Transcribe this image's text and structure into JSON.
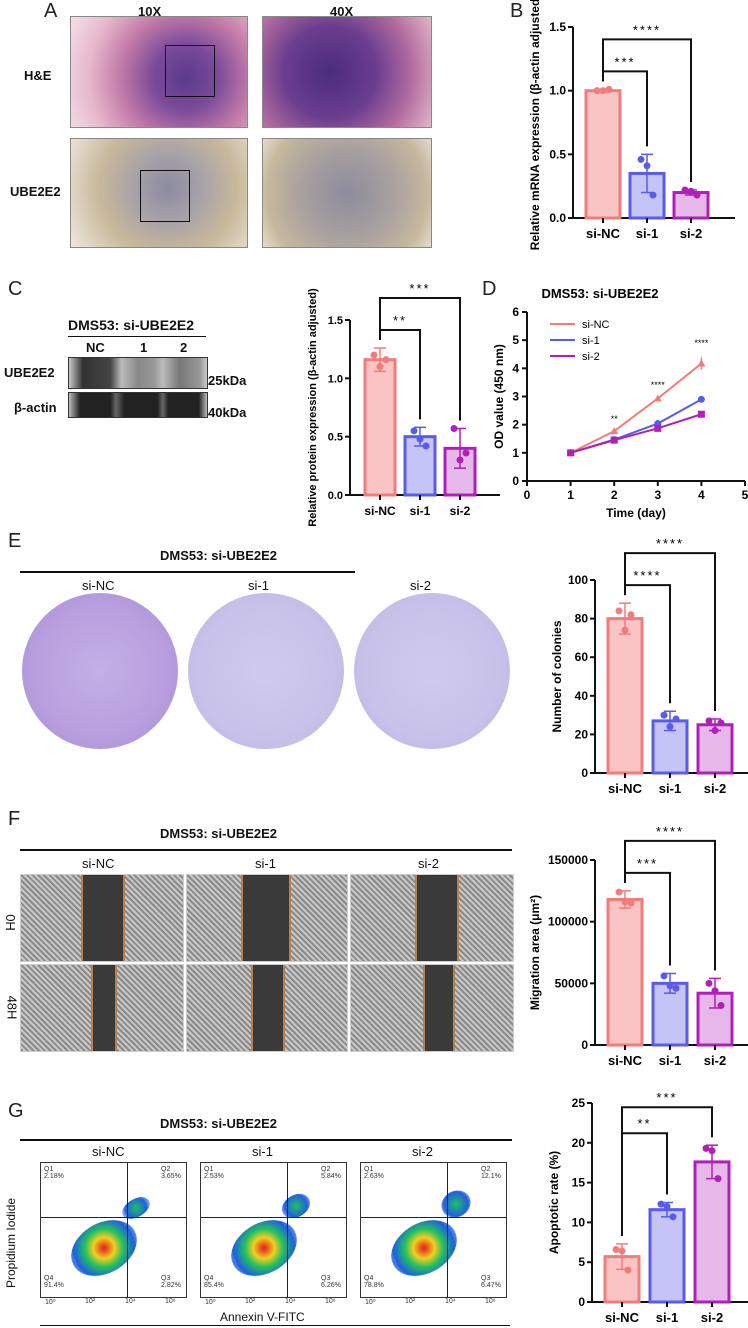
{
  "panel_labels": [
    "A",
    "B",
    "C",
    "D",
    "E",
    "F",
    "G"
  ],
  "panel_a": {
    "col_labels": [
      "10X",
      "40X"
    ],
    "row_labels": [
      "H&E",
      "UBE2E2"
    ]
  },
  "panel_c": {
    "blot_title": "DMS53: si-UBE2E2",
    "lanes": [
      "NC",
      "1",
      "2"
    ],
    "rows": [
      {
        "label": "UBE2E2",
        "size": "25kDa"
      },
      {
        "label": "β-actin",
        "size": "40kDa"
      }
    ]
  },
  "panel_e": {
    "title": "DMS53: si-UBE2E2",
    "plates": [
      "si-NC",
      "si-1",
      "si-2"
    ]
  },
  "panel_f": {
    "title": "DMS53: si-UBE2E2",
    "columns": [
      "si-NC",
      "si-1",
      "si-2"
    ],
    "rows": [
      "0H",
      "48H"
    ]
  },
  "panel_g": {
    "title": "DMS53: si-UBE2E2",
    "columns": [
      "si-NC",
      "si-1",
      "si-2"
    ],
    "ylabel": "Propidium Iodide",
    "xlabel": "Annexin V-FITC",
    "ticks": [
      "10⁰",
      "10²",
      "10⁴",
      "10⁶"
    ],
    "quadrant_names": [
      "Q1",
      "Q2",
      "Q3",
      "Q4"
    ],
    "quadrants": [
      [
        "2.18%",
        "3.65%",
        "2.82%",
        "91.4%"
      ],
      [
        "2.53%",
        "5.84%",
        "6.26%",
        "85.4%"
      ],
      [
        "2.63%",
        "12.1%",
        "6.47%",
        "78.8%"
      ]
    ]
  },
  "colors": {
    "si-NC": "#f07c7c",
    "si-1": "#5b5bea",
    "si-2": "#b020b8"
  },
  "chart_data": [
    {
      "id": "B",
      "type": "bar",
      "categories": [
        "si-NC",
        "si-1",
        "si-2"
      ],
      "values": [
        1.0,
        0.35,
        0.2
      ],
      "errors": [
        0.01,
        0.15,
        0.02
      ],
      "points": [
        [
          1.0,
          1.0,
          1.01
        ],
        [
          0.46,
          0.41,
          0.18
        ],
        [
          0.22,
          0.21,
          0.18
        ]
      ],
      "ylabel": "Relative mRNA expression (β-actin adjusted)",
      "ylim": [
        0,
        1.5
      ],
      "yticks": [
        "0.0",
        "0.5",
        "1.0",
        "1.5"
      ],
      "significance": [
        {
          "pair": [
            "si-NC",
            "si-1"
          ],
          "label": "***"
        },
        {
          "pair": [
            "si-NC",
            "si-2"
          ],
          "label": "****"
        }
      ]
    },
    {
      "id": "C",
      "type": "bar",
      "categories": [
        "si-NC",
        "si-1",
        "si-2"
      ],
      "values": [
        1.16,
        0.5,
        0.4
      ],
      "errors": [
        0.1,
        0.08,
        0.17
      ],
      "points": [
        [
          1.2,
          1.1,
          1.16
        ],
        [
          0.55,
          0.48,
          0.42
        ],
        [
          0.57,
          0.3,
          0.36
        ]
      ],
      "ylabel": "Relative protein expression (β-actin adjusted)",
      "ylim": [
        0,
        1.5
      ],
      "yticks": [
        "0.0",
        "0.5",
        "1.0",
        "1.5"
      ],
      "significance": [
        {
          "pair": [
            "si-NC",
            "si-1"
          ],
          "label": "**"
        },
        {
          "pair": [
            "si-NC",
            "si-2"
          ],
          "label": "***"
        }
      ]
    },
    {
      "id": "D",
      "type": "line",
      "title": "DMS53: si-UBE2E2",
      "xlabel": "Time (day)",
      "ylabel": "OD value (450 nm)",
      "xlim": [
        0,
        5
      ],
      "ylim": [
        0,
        6
      ],
      "xticks": [
        "0",
        "1",
        "2",
        "3",
        "4",
        "5"
      ],
      "yticks": [
        "0",
        "1",
        "2",
        "3",
        "4",
        "5",
        "6"
      ],
      "x": [
        1,
        2,
        3,
        4
      ],
      "series": [
        {
          "name": "si-NC",
          "values": [
            1.0,
            1.77,
            2.93,
            4.17
          ],
          "errors": [
            0.02,
            0.03,
            0.04,
            0.22
          ],
          "marker": "triangle"
        },
        {
          "name": "si-1",
          "values": [
            1.0,
            1.47,
            2.04,
            2.9
          ],
          "marker": "circle"
        },
        {
          "name": "si-2",
          "values": [
            1.0,
            1.45,
            1.87,
            2.37
          ],
          "marker": "square"
        }
      ],
      "annotations": [
        {
          "x": 2,
          "label": "**"
        },
        {
          "x": 3,
          "label": "****"
        },
        {
          "x": 4,
          "label": "****"
        }
      ],
      "legend": "top-left"
    },
    {
      "id": "E",
      "type": "bar",
      "categories": [
        "si-NC",
        "si-1",
        "si-2"
      ],
      "values": [
        80,
        27,
        25
      ],
      "errors": [
        8,
        5,
        3
      ],
      "points": [
        [
          84,
          74,
          82
        ],
        [
          30,
          24,
          28
        ],
        [
          27,
          22,
          26
        ]
      ],
      "ylabel": "Number of colonies",
      "ylim": [
        0,
        100
      ],
      "yticks": [
        "0",
        "20",
        "40",
        "60",
        "80",
        "100"
      ],
      "significance": [
        {
          "pair": [
            "si-NC",
            "si-1"
          ],
          "label": "****"
        },
        {
          "pair": [
            "si-NC",
            "si-2"
          ],
          "label": "****"
        }
      ]
    },
    {
      "id": "F",
      "type": "bar",
      "categories": [
        "si-NC",
        "si-1",
        "si-2"
      ],
      "values": [
        118000,
        50000,
        42000
      ],
      "errors": [
        7000,
        8000,
        12000
      ],
      "points": [
        [
          124000,
          116000,
          115000
        ],
        [
          56000,
          48000,
          46000
        ],
        [
          50000,
          44000,
          32000
        ]
      ],
      "ylabel": "Migration area (μm²)",
      "ylim": [
        0,
        150000
      ],
      "yticks": [
        "0",
        "50000",
        "100000",
        "150000"
      ],
      "significance": [
        {
          "pair": [
            "si-NC",
            "si-1"
          ],
          "label": "***"
        },
        {
          "pair": [
            "si-NC",
            "si-2"
          ],
          "label": "****"
        }
      ]
    },
    {
      "id": "G",
      "type": "bar",
      "categories": [
        "si-NC",
        "si-1",
        "si-2"
      ],
      "values": [
        5.7,
        11.6,
        17.6
      ],
      "errors": [
        1.6,
        0.9,
        2.1
      ],
      "points": [
        [
          6.6,
          6.4,
          4.0
        ],
        [
          12.3,
          12.0,
          10.7
        ],
        [
          19.3,
          19.0,
          15.5
        ]
      ],
      "ylabel": "Apoptotic rate (%)",
      "ylim": [
        0,
        25
      ],
      "yticks": [
        "0",
        "5",
        "10",
        "15",
        "20",
        "25"
      ],
      "significance": [
        {
          "pair": [
            "si-NC",
            "si-1"
          ],
          "label": "**"
        },
        {
          "pair": [
            "si-NC",
            "si-2"
          ],
          "label": "***"
        }
      ]
    }
  ]
}
